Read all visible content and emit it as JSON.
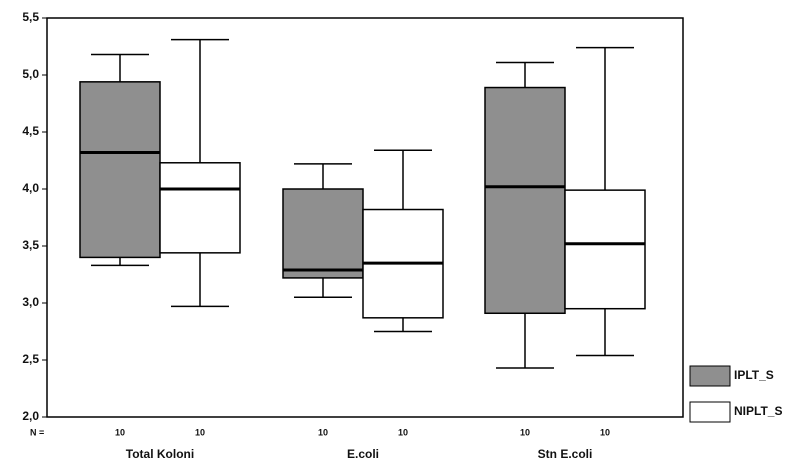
{
  "chart_data": {
    "type": "box",
    "categories": [
      "Total Koloni",
      "E.coli",
      "Stn E.coli"
    ],
    "n_label": "N =",
    "series": [
      {
        "name": "IPLT_S",
        "color": "#8f8f8f",
        "whislo": [
          3.33,
          3.05,
          2.43
        ],
        "q1": [
          3.4,
          3.22,
          2.91
        ],
        "med": [
          4.32,
          3.29,
          4.02
        ],
        "q3": [
          4.94,
          4.0,
          4.89
        ],
        "whishi": [
          5.18,
          4.22,
          5.11
        ],
        "n": [
          10,
          10,
          10
        ]
      },
      {
        "name": "NIPLT_S",
        "color": "#ffffff",
        "whislo": [
          2.97,
          2.75,
          2.54
        ],
        "q1": [
          3.44,
          2.87,
          2.95
        ],
        "med": [
          4.0,
          3.35,
          3.52
        ],
        "q3": [
          4.23,
          3.82,
          3.99
        ],
        "whishi": [
          5.31,
          4.34,
          5.24
        ],
        "n": [
          10,
          10,
          10
        ]
      }
    ],
    "ylim": [
      2.0,
      5.5
    ],
    "yticks": [
      {
        "value": 2.0,
        "label": "2,0"
      },
      {
        "value": 2.5,
        "label": "2,5"
      },
      {
        "value": 3.0,
        "label": "3,0"
      },
      {
        "value": 3.5,
        "label": "3,5"
      },
      {
        "value": 4.0,
        "label": "4,0"
      },
      {
        "value": 4.5,
        "label": "4,5"
      },
      {
        "value": 5.0,
        "label": "5,0"
      },
      {
        "value": 5.5,
        "label": "5,5"
      }
    ],
    "legend": "right"
  }
}
